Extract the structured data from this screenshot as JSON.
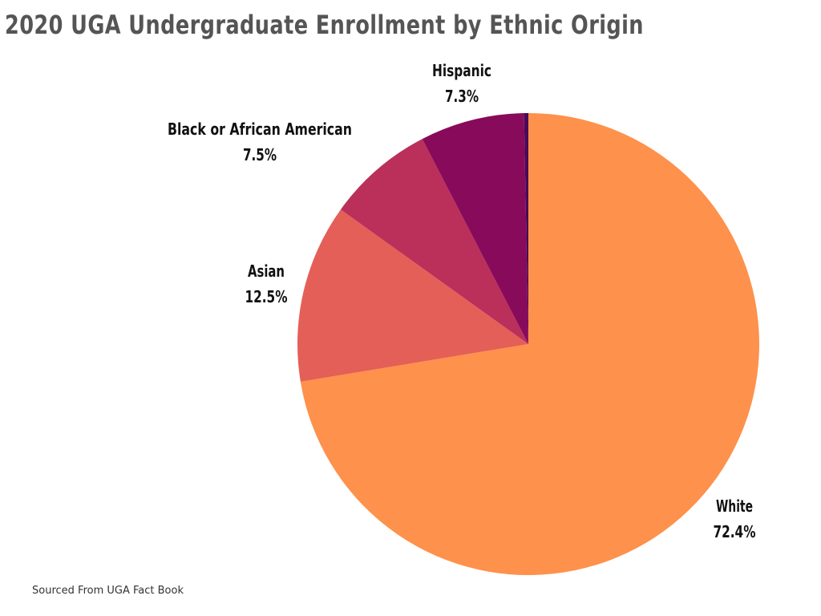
{
  "chart_data": {
    "type": "pie",
    "title": "2020 UGA Undergraduate Enrollment by Ethnic Origin",
    "slices": [
      {
        "name": "White",
        "value": 72.4,
        "label": "White",
        "value_label": "72.4%",
        "color": "#FE914B"
      },
      {
        "name": "Asian",
        "value": 12.5,
        "label": "Asian",
        "value_label": "12.5%",
        "color": "#E45F57"
      },
      {
        "name": "Black or African American",
        "value": 7.5,
        "label": "Black or African American",
        "value_label": "7.5%",
        "color": "#BB2F5B"
      },
      {
        "name": "Hispanic",
        "value": 7.3,
        "label": "Hispanic",
        "value_label": "7.3%",
        "color": "#880B5B"
      },
      {
        "name": "",
        "value": 0.3,
        "label": "",
        "value_label": "",
        "color": "#4A0A55"
      }
    ],
    "legend": "none",
    "source_note": "Sourced From UGA Fact Book"
  }
}
